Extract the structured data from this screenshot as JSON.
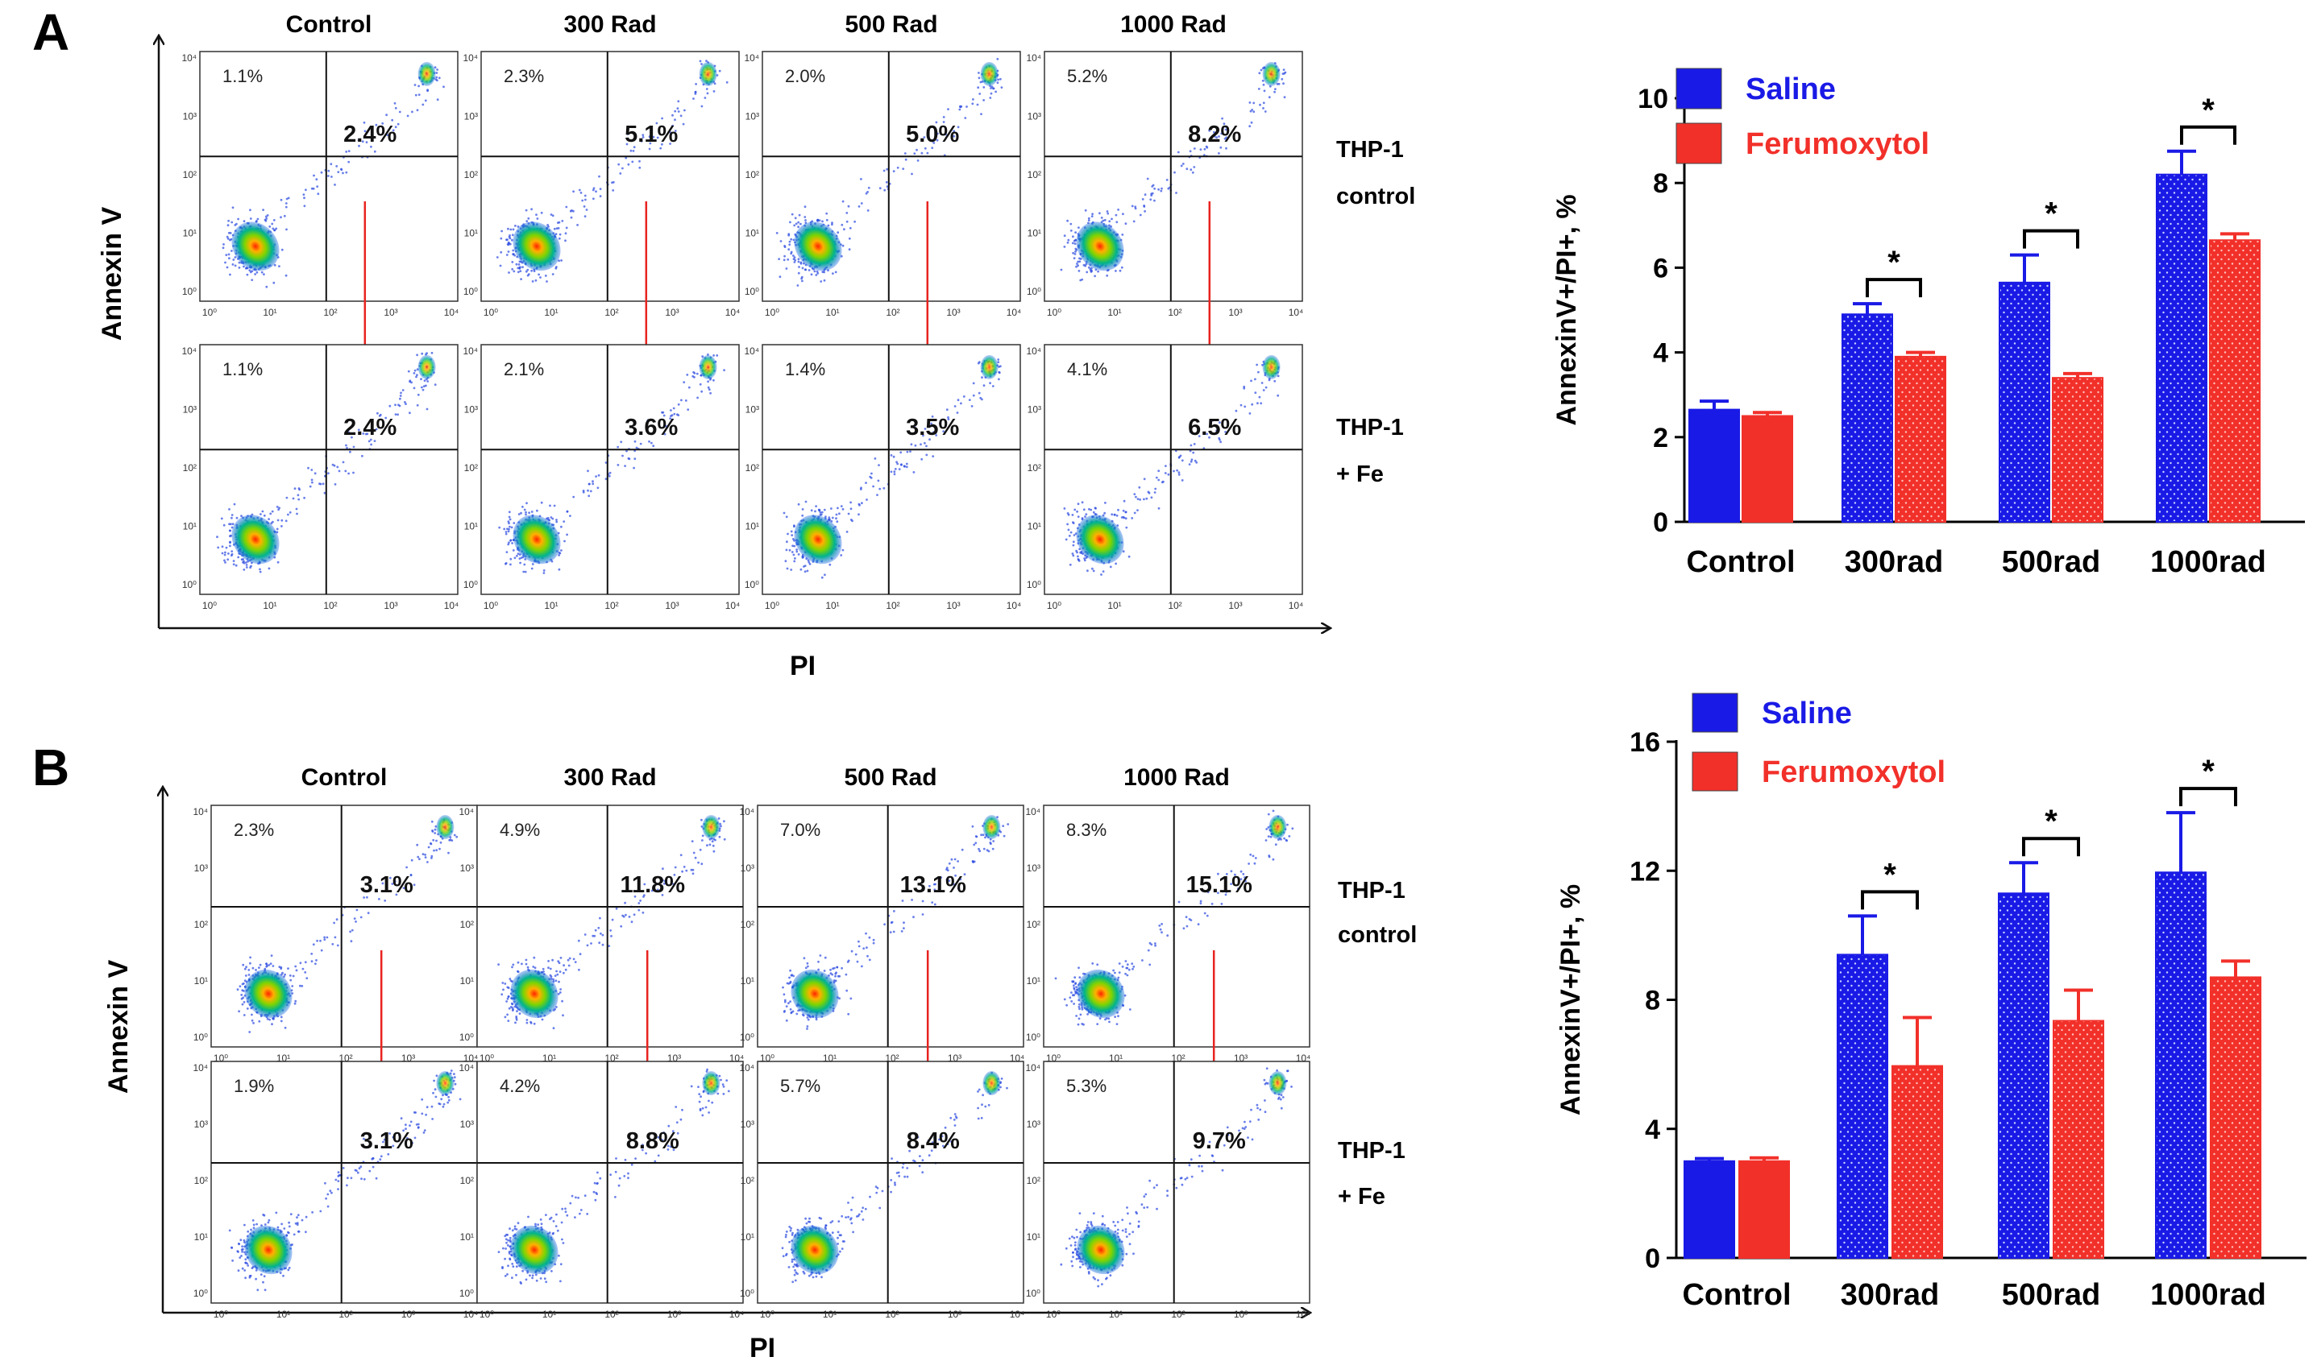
{
  "panels": [
    {
      "label": "A",
      "flow": {
        "x_axis_label": "PI",
        "y_axis_label": "Annexin V",
        "column_titles": [
          "Control",
          "300 Rad",
          "500 Rad",
          "1000 Rad"
        ],
        "row_labels": [
          [
            "THP-1",
            "control"
          ],
          [
            "THP-1",
            "+ Fe"
          ]
        ],
        "cells": [
          [
            {
              "ul": "1.1%",
              "ur": "2.4%"
            },
            {
              "ul": "2.3%",
              "ur": "5.1%"
            },
            {
              "ul": "2.0%",
              "ur": "5.0%"
            },
            {
              "ul": "5.2%",
              "ur": "8.2%"
            }
          ],
          [
            {
              "ul": "1.1%",
              "ur": "2.4%"
            },
            {
              "ul": "2.1%",
              "ur": "3.6%"
            },
            {
              "ul": "1.4%",
              "ur": "3.5%"
            },
            {
              "ul": "4.1%",
              "ur": "6.5%"
            }
          ]
        ],
        "tick_labels": [
          "10⁰",
          "10¹",
          "10²",
          "10³",
          "10⁴"
        ],
        "arrow_color": "#e8231f"
      }
    },
    {
      "label": "B",
      "flow": {
        "x_axis_label": "PI",
        "y_axis_label": "Annexin V",
        "column_titles": [
          "Control",
          "300 Rad",
          "500 Rad",
          "1000 Rad"
        ],
        "row_labels": [
          [
            "THP-1",
            "control"
          ],
          [
            "THP-1",
            "+ Fe"
          ]
        ],
        "cells": [
          [
            {
              "ul": "2.3%",
              "ur": "3.1%"
            },
            {
              "ul": "4.9%",
              "ur": "11.8%"
            },
            {
              "ul": "7.0%",
              "ur": "13.1%"
            },
            {
              "ul": "8.3%",
              "ur": "15.1%"
            }
          ],
          [
            {
              "ul": "1.9%",
              "ur": "3.1%"
            },
            {
              "ul": "4.2%",
              "ur": "8.8%"
            },
            {
              "ul": "5.7%",
              "ur": "8.4%"
            },
            {
              "ul": "5.3%",
              "ur": "9.7%"
            }
          ]
        ],
        "tick_labels": [
          "10⁰",
          "10¹",
          "10²",
          "10³",
          "10⁴"
        ],
        "arrow_color": "#e8231f"
      }
    }
  ],
  "chart_data": [
    {
      "type": "bar",
      "panel": "A",
      "categories": [
        "Control",
        "300rad",
        "500rad",
        "1000rad"
      ],
      "series": [
        {
          "name": "Saline",
          "color": "#1a1ae6",
          "values": [
            2.65,
            4.9,
            5.65,
            8.2
          ],
          "errors": [
            0.2,
            0.25,
            0.65,
            0.55
          ]
        },
        {
          "name": "Ferumoxytol",
          "color": "#f2302a",
          "values": [
            2.5,
            3.9,
            3.4,
            6.65
          ],
          "errors": [
            0.08,
            0.1,
            0.1,
            0.15
          ]
        }
      ],
      "ylabel": "AnnexinV+/PI+, %",
      "ylim": [
        0,
        10
      ],
      "yticks": [
        0,
        2,
        4,
        6,
        8,
        10
      ],
      "significance": [
        "",
        "*",
        "*",
        "*"
      ],
      "legend_position": "top-left"
    },
    {
      "type": "bar",
      "panel": "B",
      "categories": [
        "Control",
        "300rad",
        "500rad",
        "1000rad"
      ],
      "series": [
        {
          "name": "Saline",
          "color": "#1a1ae6",
          "values": [
            3.0,
            9.4,
            11.3,
            11.95
          ],
          "errors": [
            0.08,
            1.2,
            0.95,
            1.85
          ]
        },
        {
          "name": "Ferumoxytol",
          "color": "#f2302a",
          "values": [
            3.0,
            5.95,
            7.35,
            8.7
          ],
          "errors": [
            0.1,
            1.5,
            0.95,
            0.5
          ]
        }
      ],
      "ylabel": "AnnexinV+/PI+, %",
      "ylim": [
        0,
        16
      ],
      "yticks": [
        0,
        4,
        8,
        12,
        16
      ],
      "significance": [
        "",
        "*",
        "*",
        "*"
      ],
      "legend_position": "top-left"
    }
  ]
}
